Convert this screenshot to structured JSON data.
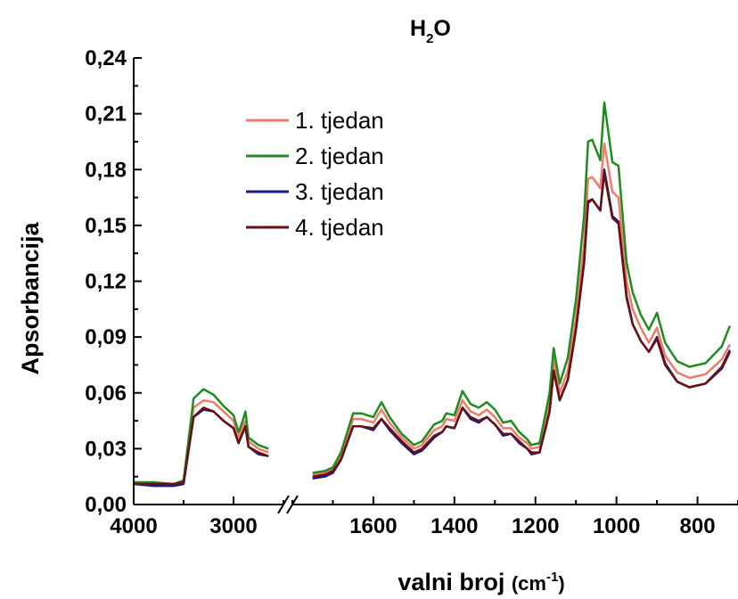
{
  "chart_data": {
    "type": "line",
    "title_main": "H",
    "title_sub": "2",
    "title_end": "O",
    "xlabel_main": "valni broj ",
    "xlabel_unit_open": "(cm",
    "xlabel_unit_sup": "-1",
    "xlabel_unit_close": ")",
    "ylabel": "Apsorbancija",
    "ylim": [
      0,
      0.24
    ],
    "y_ticks": [
      "0,00",
      "0,03",
      "0,06",
      "0,09",
      "0,12",
      "0,15",
      "0,18",
      "0,21",
      "0,24"
    ],
    "x_axis_reversed": true,
    "x_axis_break": true,
    "x_segments": [
      {
        "range": [
          4000,
          2500
        ],
        "ticks": [
          4000,
          3000
        ]
      },
      {
        "range": [
          1800,
          700
        ],
        "ticks": [
          1600,
          1400,
          1200,
          1000,
          800
        ]
      }
    ],
    "legend_position": "top-left",
    "series": [
      {
        "name": "1. tjedan",
        "color": "#f07b68",
        "segments": [
          [
            [
              4000,
              0.011
            ],
            [
              3800,
              0.011
            ],
            [
              3600,
              0.011
            ],
            [
              3500,
              0.012
            ],
            [
              3400,
              0.052
            ],
            [
              3300,
              0.056
            ],
            [
              3200,
              0.055
            ],
            [
              3100,
              0.05
            ],
            [
              3000,
              0.045
            ],
            [
              2950,
              0.036
            ],
            [
              2920,
              0.04
            ],
            [
              2880,
              0.045
            ],
            [
              2850,
              0.034
            ],
            [
              2750,
              0.03
            ],
            [
              2650,
              0.028
            ]
          ],
          [
            [
              1750,
              0.016
            ],
            [
              1720,
              0.017
            ],
            [
              1700,
              0.019
            ],
            [
              1680,
              0.026
            ],
            [
              1650,
              0.046
            ],
            [
              1630,
              0.046
            ],
            [
              1600,
              0.044
            ],
            [
              1580,
              0.051
            ],
            [
              1560,
              0.044
            ],
            [
              1530,
              0.036
            ],
            [
              1500,
              0.03
            ],
            [
              1480,
              0.032
            ],
            [
              1450,
              0.04
            ],
            [
              1430,
              0.042
            ],
            [
              1420,
              0.046
            ],
            [
              1400,
              0.045
            ],
            [
              1380,
              0.056
            ],
            [
              1360,
              0.05
            ],
            [
              1340,
              0.048
            ],
            [
              1320,
              0.051
            ],
            [
              1300,
              0.047
            ],
            [
              1280,
              0.041
            ],
            [
              1260,
              0.041
            ],
            [
              1240,
              0.036
            ],
            [
              1220,
              0.033
            ],
            [
              1210,
              0.03
            ],
            [
              1190,
              0.031
            ],
            [
              1175,
              0.045
            ],
            [
              1165,
              0.055
            ],
            [
              1155,
              0.078
            ],
            [
              1140,
              0.06
            ],
            [
              1120,
              0.072
            ],
            [
              1100,
              0.1
            ],
            [
              1080,
              0.14
            ],
            [
              1070,
              0.175
            ],
            [
              1060,
              0.176
            ],
            [
              1040,
              0.17
            ],
            [
              1030,
              0.194
            ],
            [
              1010,
              0.168
            ],
            [
              995,
              0.165
            ],
            [
              975,
              0.12
            ],
            [
              960,
              0.105
            ],
            [
              940,
              0.095
            ],
            [
              920,
              0.087
            ],
            [
              900,
              0.095
            ],
            [
              880,
              0.08
            ],
            [
              850,
              0.071
            ],
            [
              820,
              0.068
            ],
            [
              780,
              0.07
            ],
            [
              740,
              0.078
            ],
            [
              720,
              0.086
            ]
          ]
        ]
      },
      {
        "name": "2. tjedan",
        "color": "#1f8c1f",
        "segments": [
          [
            [
              4000,
              0.012
            ],
            [
              3800,
              0.012
            ],
            [
              3600,
              0.011
            ],
            [
              3500,
              0.013
            ],
            [
              3400,
              0.057
            ],
            [
              3300,
              0.062
            ],
            [
              3200,
              0.059
            ],
            [
              3100,
              0.053
            ],
            [
              3000,
              0.048
            ],
            [
              2950,
              0.039
            ],
            [
              2920,
              0.043
            ],
            [
              2880,
              0.05
            ],
            [
              2850,
              0.036
            ],
            [
              2750,
              0.032
            ],
            [
              2650,
              0.03
            ]
          ],
          [
            [
              1750,
              0.017
            ],
            [
              1720,
              0.018
            ],
            [
              1700,
              0.02
            ],
            [
              1680,
              0.028
            ],
            [
              1650,
              0.049
            ],
            [
              1630,
              0.049
            ],
            [
              1600,
              0.047
            ],
            [
              1580,
              0.055
            ],
            [
              1560,
              0.047
            ],
            [
              1530,
              0.038
            ],
            [
              1500,
              0.032
            ],
            [
              1480,
              0.034
            ],
            [
              1450,
              0.043
            ],
            [
              1430,
              0.045
            ],
            [
              1420,
              0.049
            ],
            [
              1400,
              0.048
            ],
            [
              1380,
              0.061
            ],
            [
              1360,
              0.054
            ],
            [
              1340,
              0.052
            ],
            [
              1320,
              0.055
            ],
            [
              1300,
              0.051
            ],
            [
              1280,
              0.044
            ],
            [
              1260,
              0.045
            ],
            [
              1240,
              0.039
            ],
            [
              1220,
              0.035
            ],
            [
              1210,
              0.032
            ],
            [
              1190,
              0.033
            ],
            [
              1175,
              0.049
            ],
            [
              1165,
              0.06
            ],
            [
              1155,
              0.084
            ],
            [
              1140,
              0.065
            ],
            [
              1120,
              0.079
            ],
            [
              1100,
              0.11
            ],
            [
              1080,
              0.155
            ],
            [
              1070,
              0.195
            ],
            [
              1060,
              0.196
            ],
            [
              1040,
              0.185
            ],
            [
              1030,
              0.216
            ],
            [
              1010,
              0.184
            ],
            [
              995,
              0.182
            ],
            [
              975,
              0.13
            ],
            [
              960,
              0.114
            ],
            [
              940,
              0.102
            ],
            [
              920,
              0.094
            ],
            [
              900,
              0.103
            ],
            [
              880,
              0.087
            ],
            [
              850,
              0.077
            ],
            [
              820,
              0.074
            ],
            [
              780,
              0.076
            ],
            [
              740,
              0.085
            ],
            [
              720,
              0.096
            ]
          ]
        ]
      },
      {
        "name": "3. tjedan",
        "color": "#1a1a8c",
        "segments": [
          [
            [
              4000,
              0.011
            ],
            [
              3800,
              0.01
            ],
            [
              3600,
              0.01
            ],
            [
              3500,
              0.011
            ],
            [
              3400,
              0.047
            ],
            [
              3300,
              0.051
            ],
            [
              3200,
              0.05
            ],
            [
              3100,
              0.045
            ],
            [
              3000,
              0.041
            ],
            [
              2950,
              0.033
            ],
            [
              2920,
              0.037
            ],
            [
              2880,
              0.042
            ],
            [
              2850,
              0.031
            ],
            [
              2750,
              0.027
            ],
            [
              2650,
              0.026
            ]
          ],
          [
            [
              1750,
              0.014
            ],
            [
              1720,
              0.015
            ],
            [
              1700,
              0.017
            ],
            [
              1680,
              0.024
            ],
            [
              1650,
              0.042
            ],
            [
              1630,
              0.042
            ],
            [
              1600,
              0.04
            ],
            [
              1580,
              0.046
            ],
            [
              1560,
              0.04
            ],
            [
              1530,
              0.033
            ],
            [
              1500,
              0.027
            ],
            [
              1480,
              0.029
            ],
            [
              1450,
              0.036
            ],
            [
              1430,
              0.039
            ],
            [
              1420,
              0.042
            ],
            [
              1400,
              0.041
            ],
            [
              1380,
              0.052
            ],
            [
              1360,
              0.046
            ],
            [
              1340,
              0.044
            ],
            [
              1320,
              0.047
            ],
            [
              1300,
              0.043
            ],
            [
              1280,
              0.037
            ],
            [
              1260,
              0.038
            ],
            [
              1240,
              0.033
            ],
            [
              1220,
              0.03
            ],
            [
              1210,
              0.027
            ],
            [
              1190,
              0.028
            ],
            [
              1175,
              0.041
            ],
            [
              1165,
              0.05
            ],
            [
              1155,
              0.072
            ],
            [
              1140,
              0.056
            ],
            [
              1120,
              0.067
            ],
            [
              1100,
              0.094
            ],
            [
              1080,
              0.13
            ],
            [
              1070,
              0.162
            ],
            [
              1060,
              0.164
            ],
            [
              1040,
              0.158
            ],
            [
              1030,
              0.18
            ],
            [
              1010,
              0.155
            ],
            [
              995,
              0.152
            ],
            [
              975,
              0.112
            ],
            [
              960,
              0.097
            ],
            [
              940,
              0.088
            ],
            [
              920,
              0.082
            ],
            [
              900,
              0.09
            ],
            [
              880,
              0.076
            ],
            [
              850,
              0.066
            ],
            [
              820,
              0.063
            ],
            [
              780,
              0.065
            ],
            [
              740,
              0.074
            ],
            [
              720,
              0.083
            ]
          ]
        ]
      },
      {
        "name": "4. tjedan",
        "color": "#6b0f10",
        "segments": [
          [
            [
              4000,
              0.011
            ],
            [
              3800,
              0.011
            ],
            [
              3600,
              0.011
            ],
            [
              3500,
              0.012
            ],
            [
              3400,
              0.047
            ],
            [
              3300,
              0.052
            ],
            [
              3200,
              0.05
            ],
            [
              3100,
              0.045
            ],
            [
              3000,
              0.041
            ],
            [
              2950,
              0.033
            ],
            [
              2920,
              0.037
            ],
            [
              2880,
              0.042
            ],
            [
              2850,
              0.031
            ],
            [
              2750,
              0.028
            ],
            [
              2650,
              0.026
            ]
          ],
          [
            [
              1750,
              0.015
            ],
            [
              1720,
              0.016
            ],
            [
              1700,
              0.018
            ],
            [
              1680,
              0.024
            ],
            [
              1650,
              0.042
            ],
            [
              1630,
              0.042
            ],
            [
              1600,
              0.041
            ],
            [
              1580,
              0.046
            ],
            [
              1560,
              0.041
            ],
            [
              1530,
              0.034
            ],
            [
              1500,
              0.028
            ],
            [
              1480,
              0.03
            ],
            [
              1450,
              0.037
            ],
            [
              1430,
              0.039
            ],
            [
              1420,
              0.042
            ],
            [
              1400,
              0.041
            ],
            [
              1380,
              0.052
            ],
            [
              1360,
              0.047
            ],
            [
              1340,
              0.045
            ],
            [
              1320,
              0.047
            ],
            [
              1300,
              0.043
            ],
            [
              1280,
              0.038
            ],
            [
              1260,
              0.038
            ],
            [
              1240,
              0.034
            ],
            [
              1220,
              0.03
            ],
            [
              1210,
              0.028
            ],
            [
              1190,
              0.028
            ],
            [
              1175,
              0.041
            ],
            [
              1165,
              0.05
            ],
            [
              1155,
              0.072
            ],
            [
              1140,
              0.056
            ],
            [
              1120,
              0.067
            ],
            [
              1100,
              0.094
            ],
            [
              1080,
              0.13
            ],
            [
              1070,
              0.163
            ],
            [
              1060,
              0.164
            ],
            [
              1040,
              0.158
            ],
            [
              1030,
              0.178
            ],
            [
              1010,
              0.154
            ],
            [
              995,
              0.151
            ],
            [
              975,
              0.111
            ],
            [
              960,
              0.097
            ],
            [
              940,
              0.088
            ],
            [
              920,
              0.082
            ],
            [
              900,
              0.089
            ],
            [
              880,
              0.075
            ],
            [
              850,
              0.066
            ],
            [
              820,
              0.063
            ],
            [
              780,
              0.065
            ],
            [
              740,
              0.073
            ],
            [
              720,
              0.082
            ]
          ]
        ]
      }
    ]
  }
}
